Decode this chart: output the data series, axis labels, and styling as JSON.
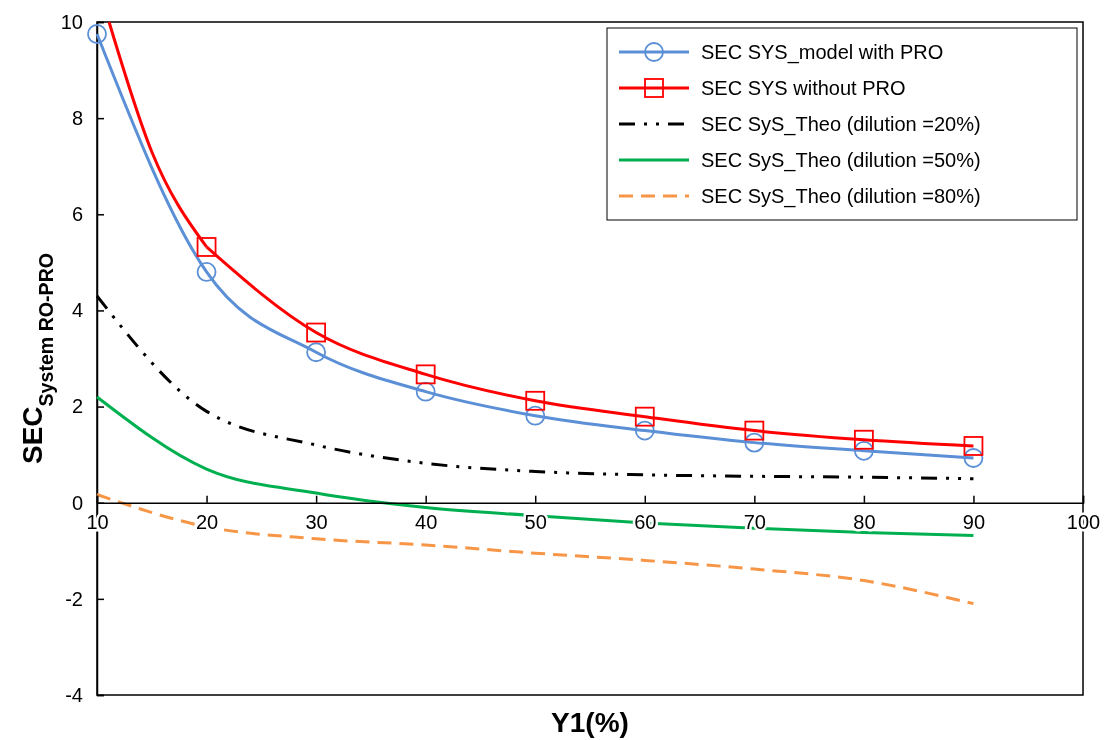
{
  "chart_data": {
    "type": "line",
    "xlabel": "Y1(%)",
    "ylabel": "SEC$_{System RO-PRO}$",
    "x": [
      10,
      20,
      30,
      40,
      50,
      60,
      70,
      80,
      90
    ],
    "xlim": [
      10,
      100
    ],
    "xticks": [
      10,
      20,
      30,
      40,
      50,
      60,
      70,
      80,
      90,
      100
    ],
    "ylim": [
      -4,
      10
    ],
    "yticks": [
      -4,
      -2,
      0,
      2,
      4,
      6,
      8,
      10
    ],
    "grid": false,
    "legend": "top right",
    "series": [
      {
        "name": "SEC SYS_model with PRO",
        "color": "#5b8fd6",
        "marker": "circle",
        "line_style": "solid",
        "values": [
          9.75,
          4.8,
          3.13,
          2.31,
          1.81,
          1.5,
          1.25,
          1.08,
          0.93
        ]
      },
      {
        "name": "SEC SYS without PRO",
        "color": "#ff0000",
        "marker": "square",
        "line_style": "solid",
        "x": [
          20,
          30,
          40,
          50,
          60,
          70,
          80,
          90
        ],
        "values": [
          5.32,
          3.54,
          2.67,
          2.12,
          1.79,
          1.5,
          1.31,
          1.18
        ]
      },
      {
        "color": "#ff0000",
        "marker": "none",
        "line_style": "solid",
        "x": [
          11.1,
          15,
          20
        ],
        "values": [
          10,
          7.3,
          5.32
        ]
      },
      {
        "name": "SEC SyS_Theo (dilution =20%)",
        "color": "#000000",
        "marker": "none",
        "line_style": "dashdotdot",
        "values": [
          4.3,
          1.9,
          1.2,
          0.82,
          0.65,
          0.58,
          0.55,
          0.53,
          0.5
        ]
      },
      {
        "name": "SEC SyS_Theo (dilution =50%)",
        "color": "#00b050",
        "marker": "none",
        "line_style": "solid",
        "values": [
          2.2,
          0.7,
          0.2,
          -0.1,
          -0.27,
          -0.42,
          -0.53,
          -0.62,
          -0.68
        ]
      },
      {
        "name": "SEC SyS_Theo (dilution =80%)",
        "color": "#f79646",
        "marker": "none",
        "line_style": "dashed",
        "values": [
          0.17,
          -0.5,
          -0.75,
          -0.88,
          -1.05,
          -1.2,
          -1.38,
          -1.62,
          -2.1
        ]
      }
    ]
  }
}
